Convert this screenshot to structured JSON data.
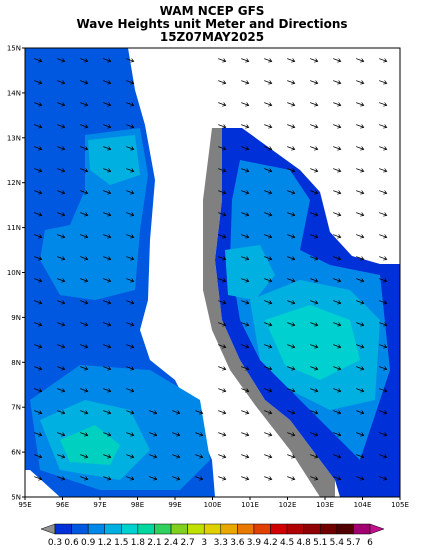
{
  "header": {
    "title_lines": [
      "WAM NCEP GFS",
      "Wave Heights unit Meter and Directions",
      "15Z07MAY2025"
    ]
  },
  "map": {
    "lat_labels": [
      "15N",
      "14N",
      "13N",
      "12N",
      "11N",
      "10N",
      "9N",
      "8N",
      "7N",
      "6N",
      "5N"
    ],
    "lon_labels": [
      "95E",
      "96E",
      "97E",
      "98E",
      "99E",
      "100E",
      "101E",
      "102E",
      "103E",
      "104E",
      "105E"
    ]
  },
  "legend": {
    "labels": [
      "0.3",
      "0.6",
      "0.9",
      "1.2",
      "1.5",
      "1.8",
      "2.1",
      "2.4",
      "2.7",
      "3",
      "3.3",
      "3.6",
      "3.9",
      "4.2",
      "4.5",
      "4.8",
      "5.1",
      "5.4",
      "5.7",
      "6"
    ],
    "under_color": "#909090",
    "over_color": "#c0108c",
    "colors": [
      "#0030d8",
      "#0058e0",
      "#0088e8",
      "#00b0e0",
      "#00d0d0",
      "#00d8a0",
      "#30d060",
      "#80d020",
      "#c0e000",
      "#e0d000",
      "#e8a800",
      "#e87800",
      "#e04000",
      "#d00000",
      "#b00000",
      "#900000",
      "#700000",
      "#500000",
      "#a00070"
    ]
  }
}
